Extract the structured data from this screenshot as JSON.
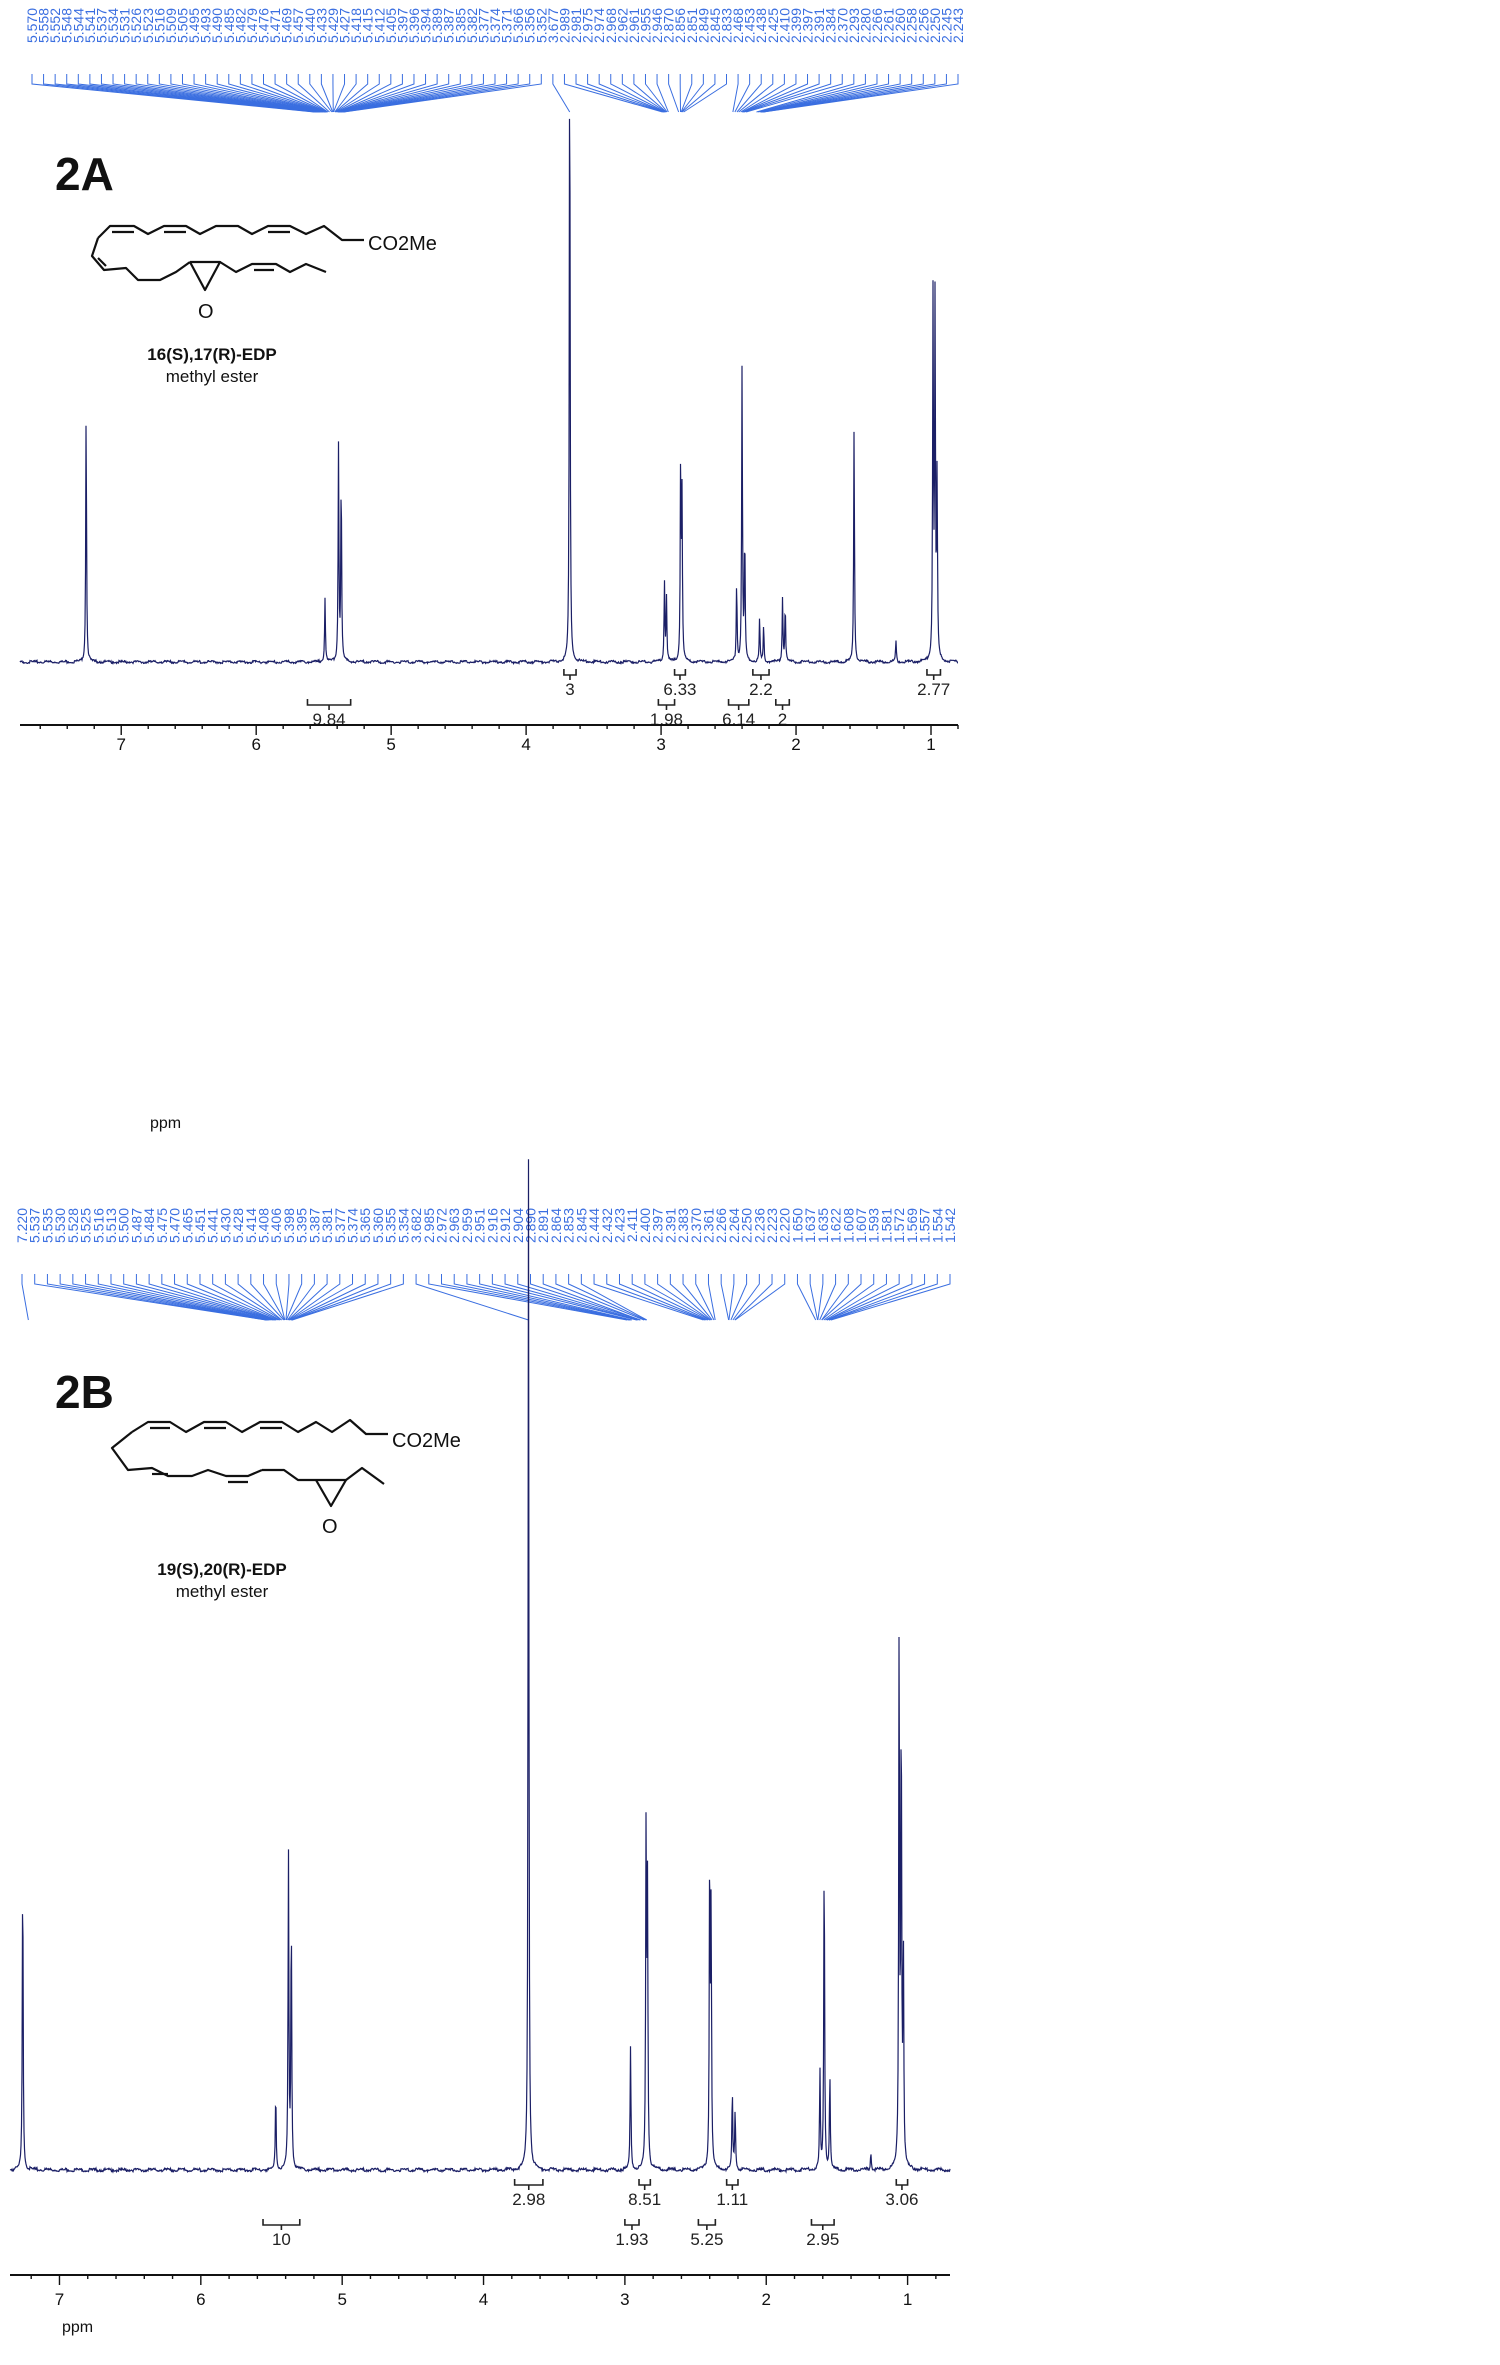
{
  "colors": {
    "spectrum": "#1b1f66",
    "peak_label": "#3a6ee0",
    "integral": "#6a7ed8",
    "axis": "#111111",
    "text": "#111111"
  },
  "chart_data": [
    {
      "type": "line",
      "panel_label": "2A",
      "compound_name": "16(S),17(R)-EDP",
      "compound_subtitle": "methyl ester",
      "ester_label": "CO2Me",
      "epoxide_label": "O",
      "xlabel": "ppm",
      "x_reversed": true,
      "xlim": [
        7.75,
        0.8
      ],
      "ylim": [
        0,
        1.0
      ],
      "x_ticks": [
        7,
        6,
        5,
        4,
        3,
        2,
        1
      ],
      "x_tick_labels": [
        "7",
        "6",
        "5",
        "4",
        "3",
        "2",
        "1"
      ],
      "peak_labels": [
        "5.570",
        "5.558",
        "5.552",
        "5.548",
        "5.544",
        "5.541",
        "5.537",
        "5.534",
        "5.531",
        "5.526",
        "5.523",
        "5.516",
        "5.509",
        "5.505",
        "5.495",
        "5.493",
        "5.490",
        "5.485",
        "5.482",
        "5.479",
        "5.476",
        "5.471",
        "5.469",
        "5.457",
        "5.440",
        "5.433",
        "5.429",
        "5.427",
        "5.418",
        "5.415",
        "5.412",
        "5.405",
        "5.397",
        "5.396",
        "5.394",
        "5.389",
        "5.387",
        "5.385",
        "5.382",
        "5.377",
        "5.374",
        "5.371",
        "5.366",
        "5.356",
        "5.352",
        "3.677",
        "2.989",
        "2.981",
        "2.975",
        "2.974",
        "2.968",
        "2.962",
        "2.961",
        "2.955",
        "2.946",
        "2.870",
        "2.856",
        "2.851",
        "2.849",
        "2.845",
        "2.833",
        "2.468",
        "2.453",
        "2.438",
        "2.425",
        "2.410",
        "2.399",
        "2.397",
        "2.391",
        "2.384",
        "2.370",
        "2.293",
        "2.280",
        "2.266",
        "2.261",
        "2.260",
        "2.258",
        "2.256",
        "2.250",
        "2.245",
        "2.243"
      ],
      "peaks": [
        {
          "ppm": 7.26,
          "height": 0.71
        },
        {
          "ppm": 5.39,
          "height": 0.6
        },
        {
          "ppm": 5.37,
          "height": 0.52
        },
        {
          "ppm": 5.49,
          "height": 0.18
        },
        {
          "ppm": 3.677,
          "height": 1.8
        },
        {
          "ppm": 2.975,
          "height": 0.22
        },
        {
          "ppm": 2.96,
          "height": 0.18
        },
        {
          "ppm": 2.855,
          "height": 0.56
        },
        {
          "ppm": 2.845,
          "height": 0.45
        },
        {
          "ppm": 2.4,
          "height": 0.82
        },
        {
          "ppm": 2.38,
          "height": 0.35
        },
        {
          "ppm": 2.44,
          "height": 0.22
        },
        {
          "ppm": 2.27,
          "height": 0.12
        },
        {
          "ppm": 2.24,
          "height": 0.1
        },
        {
          "ppm": 2.1,
          "height": 0.18
        },
        {
          "ppm": 2.08,
          "height": 0.16
        },
        {
          "ppm": 1.57,
          "height": 0.66
        },
        {
          "ppm": 1.26,
          "height": 0.06
        },
        {
          "ppm": 0.985,
          "height": 1.01
        },
        {
          "ppm": 0.97,
          "height": 0.99
        },
        {
          "ppm": 0.955,
          "height": 0.5
        }
      ],
      "integrals": [
        {
          "from": 5.62,
          "to": 5.3,
          "value": "9.84",
          "row": 2
        },
        {
          "from": 3.72,
          "to": 3.63,
          "value": "3",
          "row": 1
        },
        {
          "from": 3.02,
          "to": 2.9,
          "value": "1.98",
          "row": 2
        },
        {
          "from": 2.9,
          "to": 2.82,
          "value": "6.33",
          "row": 1
        },
        {
          "from": 2.5,
          "to": 2.35,
          "value": "6.14",
          "row": 2
        },
        {
          "from": 2.32,
          "to": 2.2,
          "value": "2.2",
          "row": 1
        },
        {
          "from": 2.15,
          "to": 2.05,
          "value": "2",
          "row": 2
        },
        {
          "from": 1.03,
          "to": 0.93,
          "value": "2.77",
          "row": 1
        }
      ]
    },
    {
      "type": "line",
      "panel_label": "2B",
      "compound_name": "19(S),20(R)-EDP",
      "compound_subtitle": "methyl ester",
      "ester_label": "CO2Me",
      "epoxide_label": "O",
      "xlabel": "ppm",
      "x_reversed": true,
      "xlim": [
        7.35,
        0.7
      ],
      "ylim": [
        0,
        1.0
      ],
      "x_ticks": [
        7,
        6,
        5,
        4,
        3,
        2,
        1
      ],
      "x_tick_labels": [
        "7",
        "6",
        "5",
        "4",
        "3",
        "2",
        "1"
      ],
      "peak_labels": [
        "7.220",
        "5.537",
        "5.535",
        "5.530",
        "5.528",
        "5.525",
        "5.516",
        "5.513",
        "5.500",
        "5.487",
        "5.484",
        "5.475",
        "5.470",
        "5.465",
        "5.451",
        "5.441",
        "5.430",
        "5.428",
        "5.414",
        "5.408",
        "5.406",
        "5.398",
        "5.395",
        "5.387",
        "5.381",
        "5.377",
        "5.374",
        "5.365",
        "5.360",
        "5.355",
        "5.354",
        "3.682",
        "2.985",
        "2.972",
        "2.963",
        "2.959",
        "2.951",
        "2.916",
        "2.912",
        "2.904",
        "2.890",
        "2.891",
        "2.864",
        "2.853",
        "2.845",
        "2.444",
        "2.432",
        "2.423",
        "2.411",
        "2.400",
        "2.397",
        "2.391",
        "2.383",
        "2.370",
        "2.361",
        "2.266",
        "2.264",
        "2.250",
        "2.236",
        "2.223",
        "2.220",
        "1.650",
        "1.637",
        "1.635",
        "1.622",
        "1.608",
        "1.607",
        "1.593",
        "1.581",
        "1.572",
        "1.569",
        "1.557",
        "1.554",
        "1.542"
      ],
      "peaks": [
        {
          "ppm": 7.26,
          "height": 0.7
        },
        {
          "ppm": 5.38,
          "height": 0.71
        },
        {
          "ppm": 5.36,
          "height": 0.58
        },
        {
          "ppm": 5.47,
          "height": 0.18
        },
        {
          "ppm": 3.682,
          "height": 2.3
        },
        {
          "ppm": 2.96,
          "height": 0.28
        },
        {
          "ppm": 2.85,
          "height": 0.78
        },
        {
          "ppm": 2.84,
          "height": 0.62
        },
        {
          "ppm": 2.4,
          "height": 0.71
        },
        {
          "ppm": 2.39,
          "height": 0.58
        },
        {
          "ppm": 2.24,
          "height": 0.18
        },
        {
          "ppm": 2.22,
          "height": 0.14
        },
        {
          "ppm": 1.59,
          "height": 0.73
        },
        {
          "ppm": 1.62,
          "height": 0.22
        },
        {
          "ppm": 1.55,
          "height": 0.22
        },
        {
          "ppm": 1.26,
          "height": 0.04
        },
        {
          "ppm": 1.06,
          "height": 1.22
        },
        {
          "ppm": 1.045,
          "height": 1.05
        },
        {
          "ppm": 1.03,
          "height": 0.5
        }
      ],
      "integrals": [
        {
          "from": 5.56,
          "to": 5.3,
          "value": "10",
          "row": 2
        },
        {
          "from": 3.78,
          "to": 3.58,
          "value": "2.98",
          "row": 1
        },
        {
          "from": 3.0,
          "to": 2.9,
          "value": "1.93",
          "row": 2
        },
        {
          "from": 2.9,
          "to": 2.82,
          "value": "8.51",
          "row": 1
        },
        {
          "from": 2.48,
          "to": 2.36,
          "value": "5.25",
          "row": 2
        },
        {
          "from": 2.28,
          "to": 2.2,
          "value": "1.11",
          "row": 1
        },
        {
          "from": 1.68,
          "to": 1.52,
          "value": "2.95",
          "row": 2
        },
        {
          "from": 1.08,
          "to": 1.0,
          "value": "3.06",
          "row": 1
        }
      ]
    }
  ]
}
